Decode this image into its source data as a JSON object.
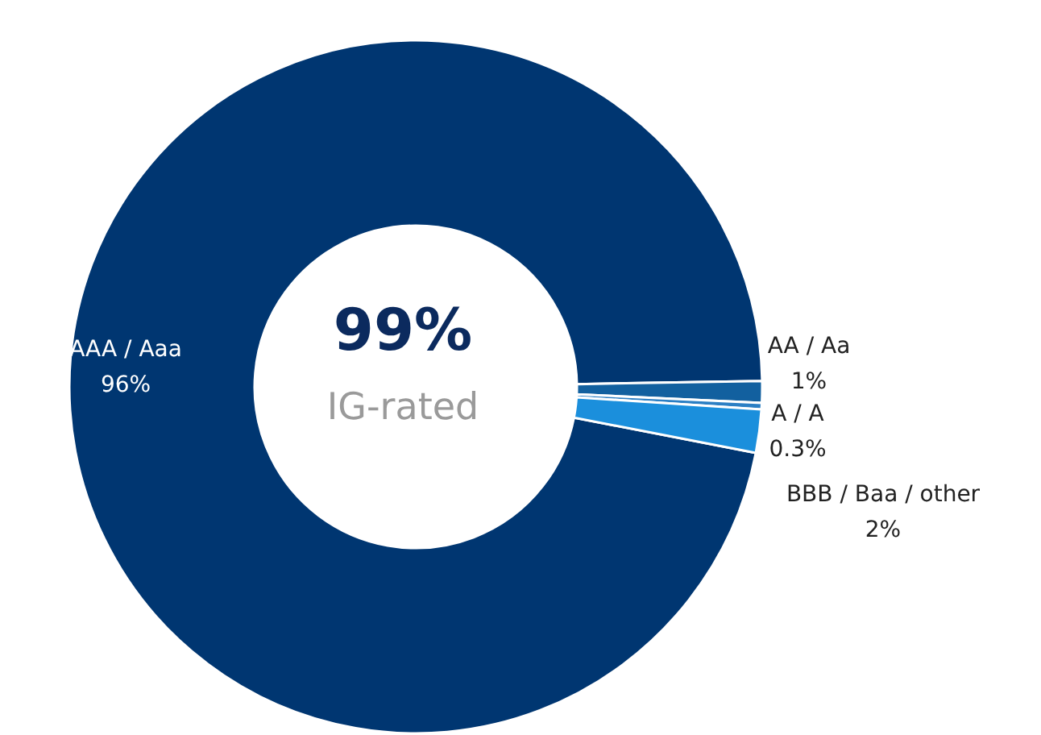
{
  "chart_data": {
    "type": "donut",
    "categories": [
      "AAA / Aaa",
      "AA / Aa",
      "A / A",
      "BBB / Baa / other"
    ],
    "values": [
      96,
      1,
      0.3,
      2
    ],
    "colors": [
      "#003671",
      "#12609f",
      "#2b7fc4",
      "#1b8fdc"
    ],
    "value_labels": [
      "96%",
      "1%",
      "0.3%",
      "2%"
    ],
    "annotations": [
      "99%",
      "IG-rated"
    ]
  }
}
